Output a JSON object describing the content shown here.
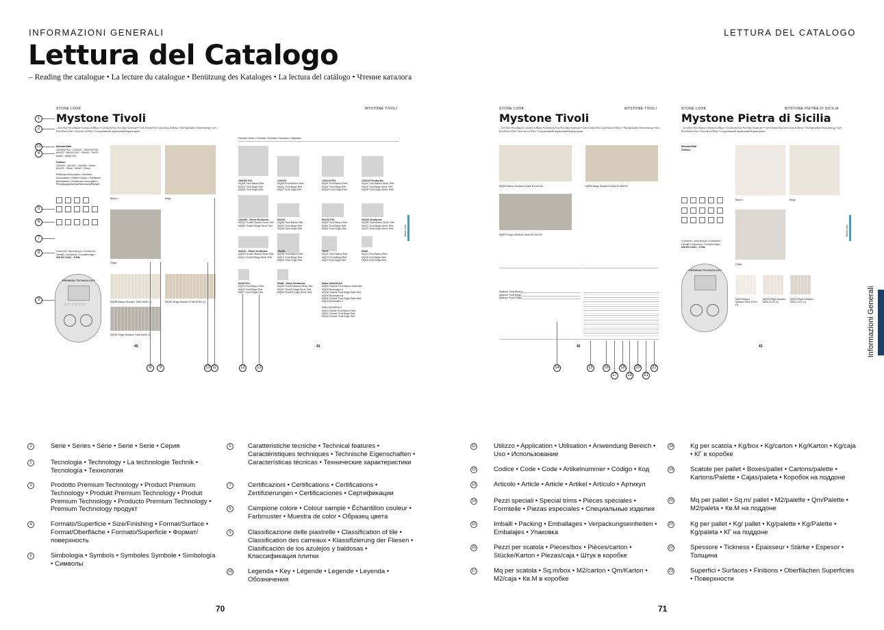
{
  "header": {
    "left_section": "INFORMAZIONI GENERALI",
    "right_section": "LETTURA DEL CATALOGO",
    "title": "Lettura del Catalogo",
    "subtitle": "– Reading the catalogue • La lecture du catalogue • Benützung des Kataloges • La lectura del catálogo • Чтение каталога"
  },
  "side_tab": {
    "label": "Informazioni Generali",
    "color": "#1f3f66"
  },
  "sample_spread": {
    "page40": {
      "category": "STONE LOOK",
      "series": "Mystone Tivoli",
      "description": "– Gres Fine Porcellanato Colorato in Massa • Colorbody Fine Porcelain Stoneware • Grès Cérame Fin Coloré dans la Masse • Durchgefärbtes Feinsteinzeug • Gres Porcelánico Fino Coloreado en Masa • Глазурованный окрашенный Керамогранит",
      "finish_natural": "Naturale/Matt",
      "sizes_natural": "160x160 R10 · 120x120 · 120x120 R10 · 60x120 · 60x120 R10 · 75x150 · 75x75 · 60x60 · 60x60 R10",
      "finish_outdoor": "Outdoor",
      "sizes_outdoor": "120x120 · 60x120 · 120x260 · 20mm · 60x120 · 20mm · 60x60 · 20mm",
      "rectified": "Rettificato Monocalibro • Rectified Monocaliber • Calibre Unique • Rektifiziert Monokaliber • Rectificado monocalibre • Ректифицированный монокалиберный",
      "conform": "Conforme • According to • Conforme • Gemäß • Conforme • Соответствует",
      "norm": "UNI EN 14411 - G Bla",
      "swatches": [
        "Bianco",
        "Beige",
        "Grigio"
      ],
      "mosaics": [
        "MQHB Bianco Mosaico Tratti 30x60 (1)",
        "MQHD Beige Mosaico Tratti 30x60 (1)",
        "MQHE Grigio Mosaico Tratti 30x60 (1)"
      ],
      "premium_label": "PREMIUM TECHNOLOGY",
      "page_number": "40"
    },
    "page41": {
      "header_right": "MYSTONE TIVOLI",
      "formats_heading": "Formati • Sizes • Formats • Formate • Formatos • Форматы",
      "formats": [
        {
          "size": "160x160 R10",
          "items": "MQAB Tivoli Bianco Rett.\nMQAC Tivoli Beige Rett.\nMQAD Tivoli Grigio Rett."
        },
        {
          "size": "120x120",
          "items": "MQAM Tivoli Bianco Rett.\nMQAQ Tivoli Beige Rett.\nMQAT Tivoli Grigio Rett."
        },
        {
          "size": "120x120 R10",
          "items": "MQAY Tivoli Bianco Rett.\nMQAZ Tivoli Beige Rett.\nMQAW Tivoli Grigio Rett."
        },
        {
          "size": "120x120 Strutturato",
          "items": "MQAX Tivoli Bianco Strutt. Rett.\nMQAF Tivoli Beige Strutt. Rett.\nMQAR Tivoli Grigio Strutt. Rett."
        },
        {
          "size": "120x260 - 20mm Strutturato",
          "items": "MQGD Tivoli20 Bianco Strutt. Rett.\nMQGE Tivoli20 Beige Strutt. Rett."
        },
        {
          "size": "60x120",
          "items": "MQAN Tivoli Bianco Rett.\nMQAO Tivoli Beige Rett.\nMQAS Tivoli Grigio Rett."
        },
        {
          "size": "60x120 R10",
          "items": "MQAV Tivoli Bianco Rett.\nMQAY Tivoli Beige Rett.\nMQAZ Tivoli Grigio Rett."
        },
        {
          "size": "60x120 Strutturato",
          "items": "MQGB Tivoli Bianco Strutt. Rett.\nMQGC Tivoli Beige Strutt. Rett.\nMQGY Tivoli Grigio Strutt. Rett."
        },
        {
          "size": "60x120 - 20mm Strutturato",
          "items": "MQGH Tivoli20 Bianco Strutt. Rett.\nMQGJ Tivoli20 Beige Strutt. Rett."
        },
        {
          "size": "75x150",
          "items": "MQCB Tivoli Bianco Rett.\nMQCC Tivoli Beige Rett.\nMQCH Tivoli Grigio Rett."
        },
        {
          "size": "75x75",
          "items": "MQCF Tivoli Bianco Rett.\nMQCG Tivoli Beige Rett.\nMQCI Tivoli Grigio Rett."
        },
        {
          "size": "60x60",
          "items": "MQC4 Tivoli Bianco Rett.\nMQC5 Tivoli Beige Rett.\nMQC6 Tivoli Grigio Rett."
        },
        {
          "size": "60x60 R10",
          "items": "MQC8 Tivoli Bianco Rett.\nMQC9 Tivoli Beige Rett.\nMQC7 Tivoli Grigio Rett."
        },
        {
          "size": "60x60 - 20mm Strutturato",
          "items": "MQGD Tivoli20 Bianco Strutt. Rett.\nMQGF Tivoli20 Beige Strutt. Rett.\nMQGH Tivoli20 Grigio Strutt. Rett."
        },
        {
          "size": "Slabs 160x320x6,5",
          "items": "MQRG Grande Tivoli Bianco Satin Rett.\nMQPR Bookmatch A\nMQRH Grande Tivoli Beige Satin Rett.\nMQPS Bookmatch B\nMQRK Grande Tivoli Grigio Satin Rett.\nMQPU Bookmatch C\n\nSlabs 160x320x6,5\nMQSJ Grande Tivoli Bianco Rett.\nMQSC Grande Tivoli Beige Rett.\nMQSH Grande Tivoli Grigio Rett."
        }
      ],
      "side_label": "Stone Look",
      "page_number": "41"
    },
    "page42": {
      "category": "STONE LOOK",
      "series": "Mystone Tivoli",
      "header_right": "MYSTONE TIVOLI",
      "tiles": [
        "MQED Bianco Struttura Vesta 3D 60x120",
        "MQEA Beige Struttura Vesta 3D 60x120",
        "MQEC Grigio Struttura Vesta 3D 60x120"
      ],
      "trims_rows": [
        "Mystone Tivoli Bianco",
        "Mystone Tivoli Beige",
        "Mystone Tivoli Grigio"
      ],
      "page_number": "42"
    },
    "page43": {
      "category": "STONE LOOK",
      "series": "Mystone Pietra di Sicilia",
      "header_right": "MYSTONE PIETRA DI SICILIA",
      "swatches": [
        "Bianco",
        "Beige",
        "Grigio"
      ],
      "mosaics": [
        "MQ33 Bianco Mosaico Stick 21x21 (1)",
        "MQ33 Beige Mosaico Stick 21x21 (1)",
        "MQ33 Grigio Mosaico Stick 21x21 (1)"
      ],
      "norm": "UNI EN 14411 - G Bla",
      "side_label": "Stone Look",
      "page_number": "43"
    }
  },
  "legend": [
    {
      "n": "1",
      "text": "Serie • Series • Série • Serie • Serie • Серия"
    },
    {
      "n": "2",
      "text": "Tecnologia • Technology • La technologie Technik • Tecnología • Технология"
    },
    {
      "n": "3",
      "text": "Prodotto Premium Technology • Product Premium Technology • Produkt Premium Technology • Produit Premium Technology • Producto Premium Technology • Premium Technology продукт"
    },
    {
      "n": "4",
      "text": "Formato/Superficie • Size/Finishing • Format/Surface • Format/Oberfläche • Formato/Superficie • Формат/ поверхность"
    },
    {
      "n": "5",
      "text": "Simbologia • Symbols • Symboles Symbole • Simbología • Символы"
    },
    {
      "n": "6",
      "text": "Caratteristiche tecniche • Technical features • Caractéristiques techniques • Technische Eigenschaften • Características técnicas • Технические характеристики"
    },
    {
      "n": "7",
      "text": "Certificazioni • Certifications • Certifications • Zertifizierungen • Certificaciones • Сертификации"
    },
    {
      "n": "8",
      "text": "Campione colore • Colour sample • Échantillon couleur • Farbmuster • Muestra de color • Образец цвета"
    },
    {
      "n": "9",
      "text": "Classificazione delle piastrelle • Classification of tile • Classification des carreaux • Klassifizierung der Fliesen • Clasificación de los azulejos y baldosas • Классификация плитки"
    },
    {
      "n": "10",
      "text": "Legenda • Key • Légende • Legende • Leyenda • Обозначения"
    },
    {
      "n": "11",
      "text": "Utilizzo • Application • Utilisation • Anwendung Bereich • Uso • Использование"
    },
    {
      "n": "12",
      "text": "Codice • Code • Code • Artikelnummer • Código • Код"
    },
    {
      "n": "13",
      "text": "Articolo • Article • Article • Artikel • Artículo • Артикул"
    },
    {
      "n": "14",
      "text": "Pezzi speciali • Special trims • Pièces spéciales • Formteile • Piezas especiales • Специальные изделия"
    },
    {
      "n": "15",
      "text": "Imballi • Packing • Emballages • Verpackungseinheiten • Embalajes • Упаковка"
    },
    {
      "n": "16",
      "text": "Pezzi per scatola • Pieces/box • Pièces/carton • Stücke/Karton • Piezas/caja • Штук в коробке"
    },
    {
      "n": "17",
      "text": "Mq per scatola • Sq.m/box • M2/carton • Qm/Karton • M2/caja • Кв.М в коробке"
    },
    {
      "n": "18",
      "text": "Kg per scatola • Kg/box • Kg/carton • Kg/Karton • Kg/caja • КГ в коробке"
    },
    {
      "n": "19",
      "text": "Scatole per pallet • Boxes/pallet • Cartons/palette • Kartons/Palette • Cajas/paleta • Коробок на поддоне"
    },
    {
      "n": "20",
      "text": "Mq per pallet • Sq.m/ pallet • M2/palette • Qm/Palette • M2/paleta • Кв.М на поддоне"
    },
    {
      "n": "21",
      "text": "Kg per pallet • Kg/ pallet • Kg/palette • Kg/Palette • Kg/paleta • КГ на поддоне"
    },
    {
      "n": "22",
      "text": "Spessore • Tickness • Épaisseur • Stärke • Espesor • Толщина"
    },
    {
      "n": "23",
      "text": "Superfici • Surfaces • Finitions • Oberflächen Superficies • Поверхности"
    }
  ],
  "page_numbers": {
    "left": "70",
    "right": "71"
  },
  "colors": {
    "bianco": "#e9e4d8",
    "beige": "#d9cfbe",
    "grigio": "#bab5ac",
    "accent_blue": "#3a9fc4",
    "tab_navy": "#1f3f66"
  }
}
